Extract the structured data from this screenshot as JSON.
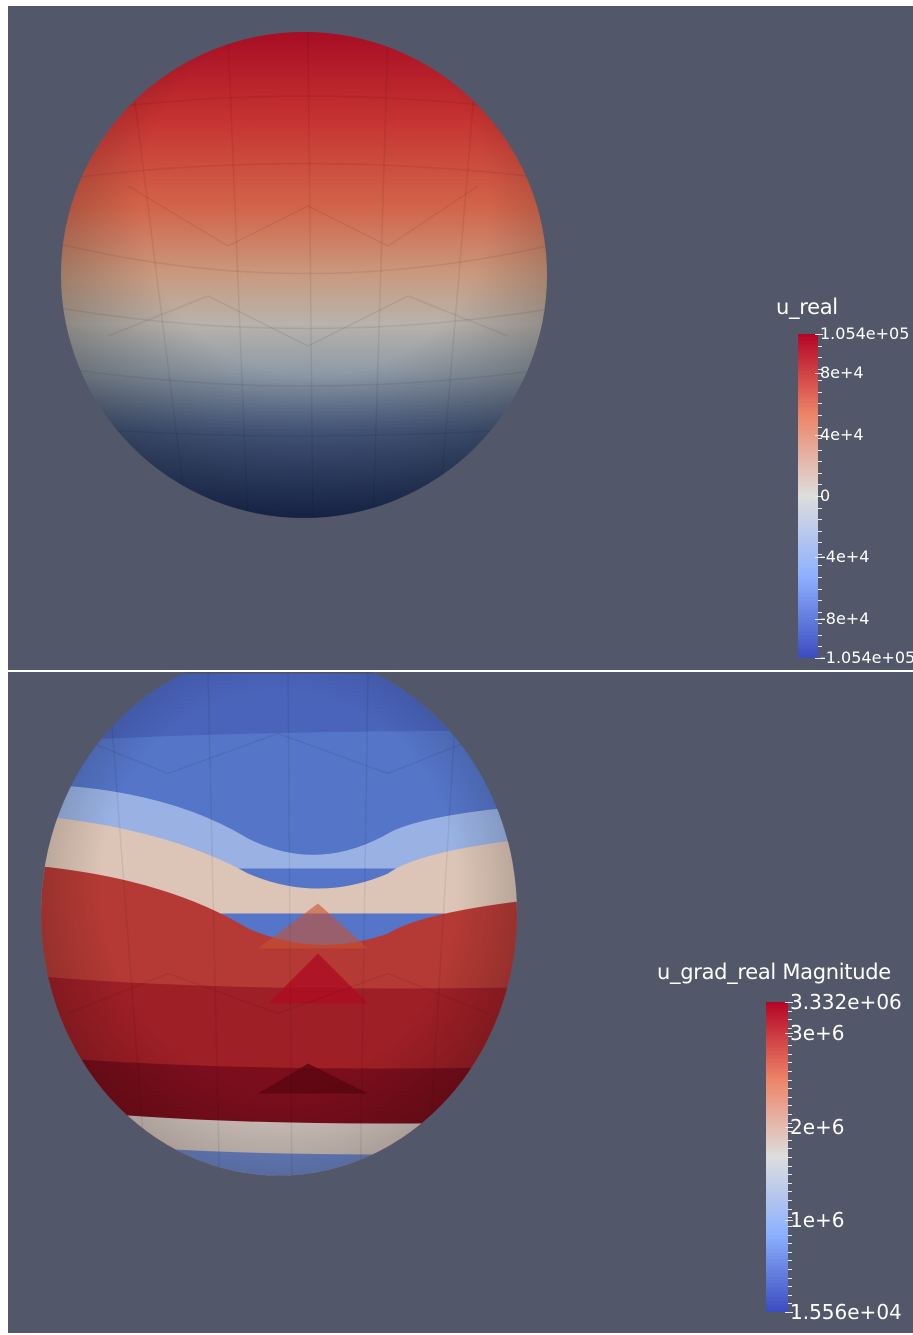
{
  "panels": [
    {
      "id": "top",
      "field": "u_real",
      "range_max": "1.054e+05",
      "range_min": "-1.054e+05",
      "ticks": [
        {
          "label": "1.054e+05",
          "value": 105400
        },
        {
          "label": "8e+4",
          "value": 80000
        },
        {
          "label": "4e+4",
          "value": 40000
        },
        {
          "label": "0",
          "value": 0
        },
        {
          "label": "-4e+4",
          "value": -40000
        },
        {
          "label": "-8e+4",
          "value": -80000
        },
        {
          "label": "-1.054e+05",
          "value": -105400
        }
      ],
      "colormap": "Cool to Warm",
      "colors": {
        "low": "#3b4cc0",
        "mid": "#dddddd",
        "high": "#b40426"
      }
    },
    {
      "id": "bottom",
      "field": "u_grad_real Magnitude",
      "range_max": "3.332e+06",
      "range_min": "1.556e+04",
      "ticks": [
        {
          "label": "3.332e+06",
          "value": 3332000
        },
        {
          "label": "3e+6",
          "value": 3000000
        },
        {
          "label": "2e+6",
          "value": 2000000
        },
        {
          "label": "1e+6",
          "value": 1000000
        },
        {
          "label": "1.556e+04",
          "value": 15560
        }
      ],
      "colormap": "Cool to Warm",
      "colors": {
        "low": "#3b4cc0",
        "mid": "#dddddd",
        "high": "#b40426"
      }
    }
  ],
  "background_color": "#525769"
}
